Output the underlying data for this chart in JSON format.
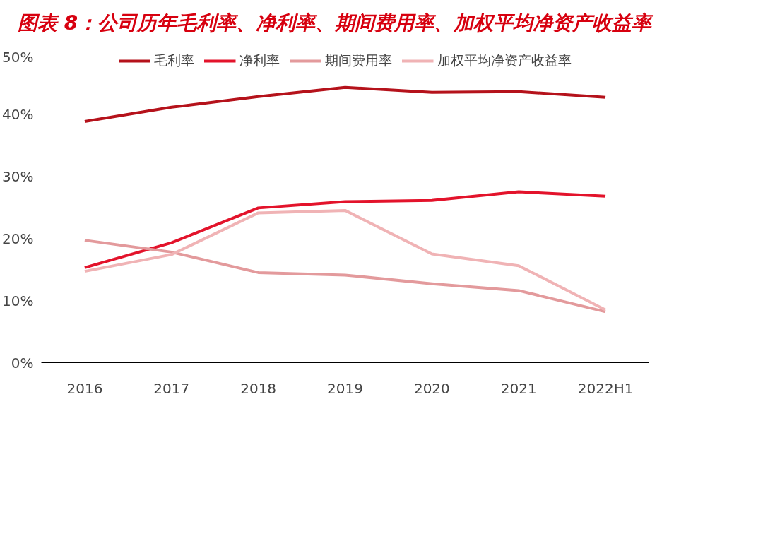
{
  "chart_data": {
    "type": "line",
    "title": "图表 8：公司历年毛利率、净利率、期间费用率、加权平均净资产收益率",
    "categories": [
      "2016",
      "2017",
      "2018",
      "2019",
      "2020",
      "2021",
      "2022H1"
    ],
    "series": [
      {
        "name": "毛利率",
        "color": "#b5121b",
        "values": [
          38.8,
          41.1,
          42.8,
          44.3,
          43.5,
          43.6,
          42.7
        ]
      },
      {
        "name": "净利率",
        "color": "#e3132b",
        "values": [
          15.3,
          19.3,
          24.9,
          25.9,
          26.1,
          27.5,
          26.8
        ]
      },
      {
        "name": "期间费用率",
        "color": "#e39a9c",
        "values": [
          19.7,
          17.8,
          14.5,
          14.1,
          12.7,
          11.6,
          8.2
        ]
      },
      {
        "name": "加权平均净资产收益率",
        "color": "#f0b3b5",
        "values": [
          14.7,
          17.4,
          24.1,
          24.5,
          17.5,
          15.6,
          8.5
        ]
      }
    ],
    "ylim": [
      0,
      50
    ],
    "yticks": [
      {
        "value": 0,
        "label": "0%"
      },
      {
        "value": 10,
        "label": "10%"
      },
      {
        "value": 20,
        "label": "20%"
      },
      {
        "value": 30,
        "label": "30%"
      },
      {
        "value": 40,
        "label": "40%"
      },
      {
        "value": 50,
        "label": "50%"
      }
    ],
    "grid": false,
    "legend": "top",
    "marker": "none",
    "line_style": "solid"
  }
}
